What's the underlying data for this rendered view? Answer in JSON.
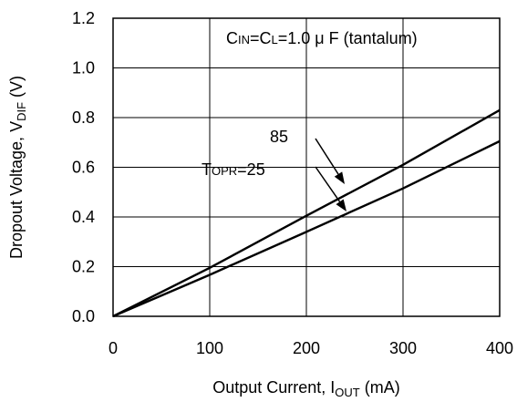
{
  "chart_data": {
    "type": "line",
    "xlabel": {
      "main": "Output Current, I",
      "sub": "OUT",
      "suffix": " (mA)"
    },
    "ylabel": {
      "main": "Dropout Voltage, V",
      "sub": "DIF",
      "suffix": " (V)"
    },
    "xlim": [
      0,
      400
    ],
    "ylim": [
      0,
      1.2
    ],
    "x_ticks": [
      0,
      100,
      200,
      300,
      400
    ],
    "x_tick_labels": [
      "0",
      "100",
      "200",
      "300",
      "400"
    ],
    "y_ticks": [
      0,
      0.2,
      0.4,
      0.6,
      0.8,
      1.0,
      1.2
    ],
    "y_tick_labels": [
      "0.0",
      "0.2",
      "0.4",
      "0.6",
      "0.8",
      "1.0",
      "1.2"
    ],
    "grid": true,
    "series": [
      {
        "x": [
          0,
          100,
          200,
          300,
          400
        ],
        "y": [
          0,
          0.195,
          0.405,
          0.61,
          0.83
        ]
      },
      {
        "x": [
          0,
          100,
          200,
          300,
          400
        ],
        "y": [
          0,
          0.167,
          0.34,
          0.515,
          0.705
        ]
      }
    ],
    "condition": {
      "c1": "C",
      "c1_sub": "IN",
      "eq1": "=C",
      "c2_sub": "L",
      "rest": "=1.0 μ F (tantalum)"
    },
    "annotations": {
      "hot_label": "85",
      "room_prefix": "T",
      "room_sub": "OPR",
      "room_value": "=25"
    }
  }
}
